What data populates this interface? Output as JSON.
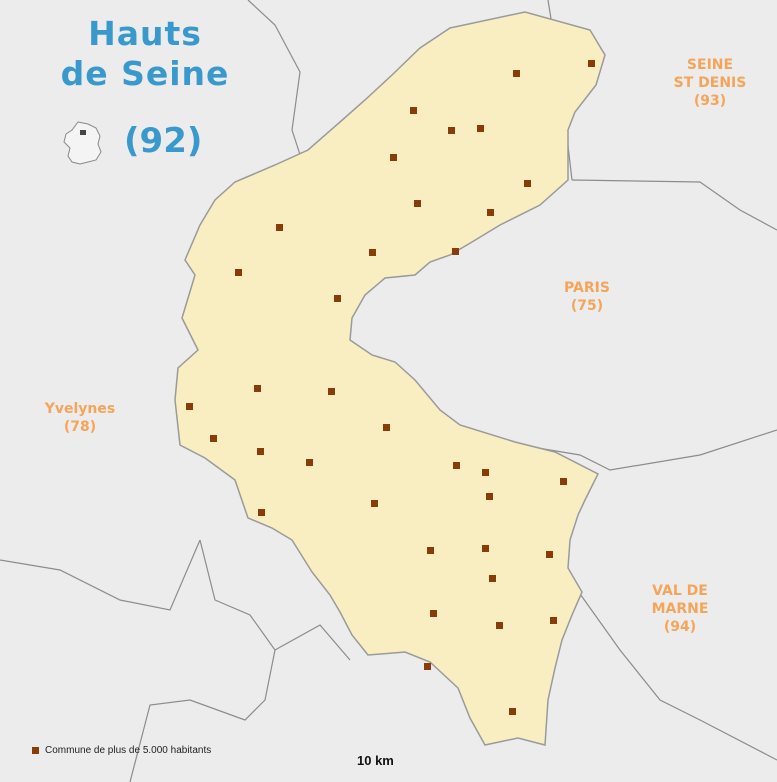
{
  "title": {
    "line1": "Hauts",
    "line2": "de Seine",
    "code": "(92)"
  },
  "neighbors": {
    "seine_st_denis": {
      "line1": "SEINE",
      "line2": "ST DENIS",
      "code": "(93)"
    },
    "paris": {
      "line1": "PARIS",
      "code": "(75)"
    },
    "yvelynes": {
      "line1": "Yvelynes",
      "code": "(78)"
    },
    "val_de_marne": {
      "line1": "VAL DE",
      "line2": "MARNE",
      "code": "(94)"
    }
  },
  "legend": {
    "label": "Commune de plus de 5.000 habitants"
  },
  "scale": {
    "label": "10 km"
  },
  "colors": {
    "department_fill": "#f9eec2",
    "background": "#ececec",
    "border": "#8c8c8c",
    "marker": "#8a3b0a",
    "title": "#3a99cc",
    "neighbor_label": "#f5a55a"
  },
  "markers": {
    "count": 36,
    "marker_icon": "square-marker-icon"
  }
}
